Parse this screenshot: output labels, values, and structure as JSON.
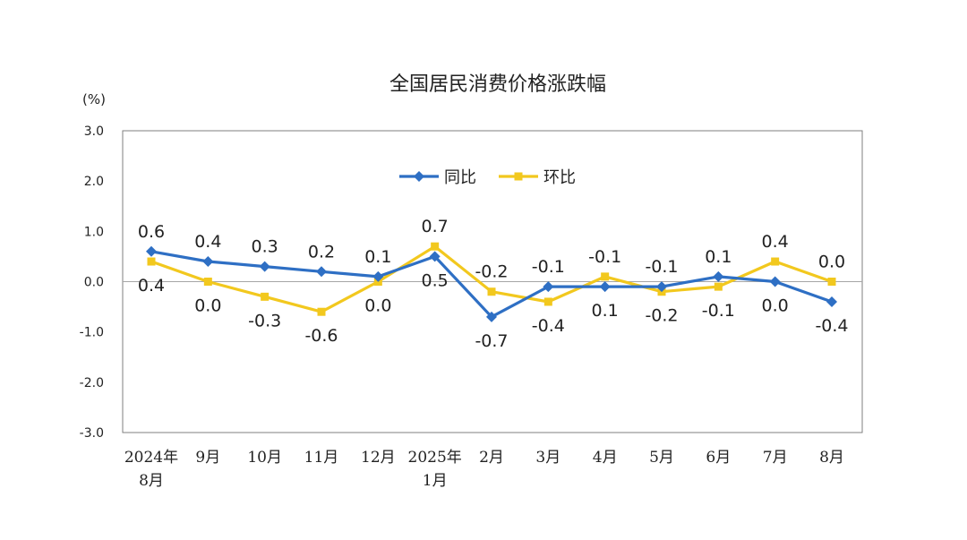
{
  "chart_data": {
    "type": "line",
    "title": "全国居民消费价格涨跌幅",
    "ylabel": "(%)",
    "ylim": [
      -3.0,
      3.0
    ],
    "yticks": [
      "3.0",
      "2.0",
      "1.0",
      "0.0",
      "-1.0",
      "-2.0",
      "-3.0"
    ],
    "categories": [
      [
        "2024年",
        "8月"
      ],
      [
        "9月"
      ],
      [
        "10月"
      ],
      [
        "11月"
      ],
      [
        "12月"
      ],
      [
        "2025年",
        "1月"
      ],
      [
        "2月"
      ],
      [
        "3月"
      ],
      [
        "4月"
      ],
      [
        "5月"
      ],
      [
        "6月"
      ],
      [
        "7月"
      ],
      [
        "8月"
      ]
    ],
    "legend_position": "top-center",
    "series": [
      {
        "name": "同比",
        "color": "#2E6FC4",
        "marker": "diamond",
        "values": [
          0.6,
          0.4,
          0.3,
          0.2,
          0.1,
          0.5,
          -0.7,
          -0.1,
          -0.1,
          -0.1,
          0.1,
          0.0,
          -0.4
        ],
        "labels": [
          "0.6",
          "0.4",
          "0.3",
          "0.2",
          "0.1",
          "0.5",
          "-0.7",
          "-0.1",
          "-0.1",
          "-0.1",
          "0.1",
          "0.0",
          "-0.4"
        ]
      },
      {
        "name": "环比",
        "color": "#F2C81E",
        "marker": "square",
        "values": [
          0.4,
          0.0,
          -0.3,
          -0.6,
          0.0,
          0.7,
          -0.2,
          -0.4,
          0.1,
          -0.2,
          -0.1,
          0.4,
          0.0
        ],
        "labels": [
          "0.4",
          "0.0",
          "-0.3",
          "-0.6",
          "0.0",
          "0.7",
          "-0.2",
          "-0.4",
          "0.1",
          "-0.2",
          "-0.1",
          "0.4",
          "0.0"
        ]
      }
    ]
  }
}
